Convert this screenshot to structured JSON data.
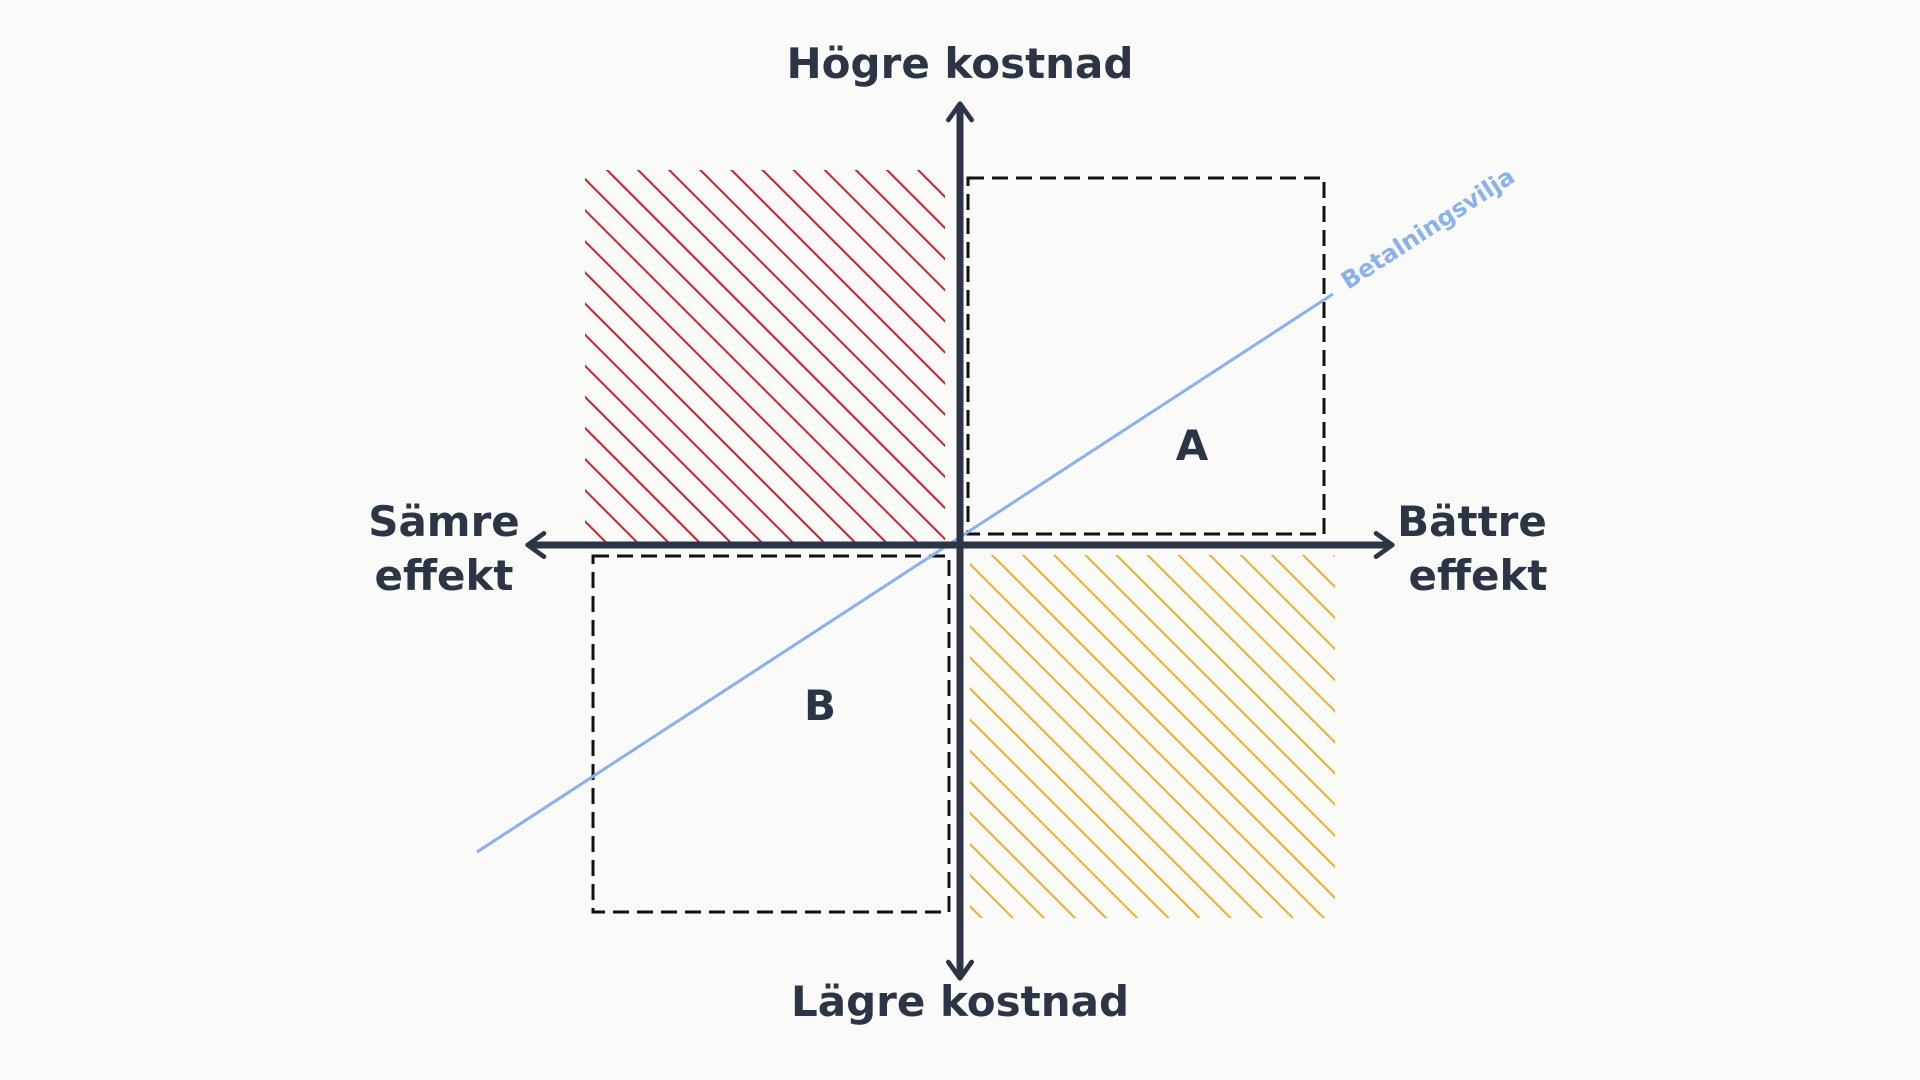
{
  "axes": {
    "top": "Högre kostnad",
    "bottom": "Lägre kostnad",
    "left_line1": "Sämre",
    "left_line2": "effekt",
    "right_line1": "Bättre",
    "right_line2": "effekt"
  },
  "boxes": {
    "a": "A",
    "b": "B"
  },
  "wtp_line": {
    "label": "Betalningsvilja"
  },
  "colors": {
    "background": "#fafaf8",
    "axis": "#2c3545",
    "red_hatch": "#d0202e",
    "yellow_hatch": "#e8b030",
    "wtp_line": "#8ab0ee",
    "box_border": "#111111"
  }
}
